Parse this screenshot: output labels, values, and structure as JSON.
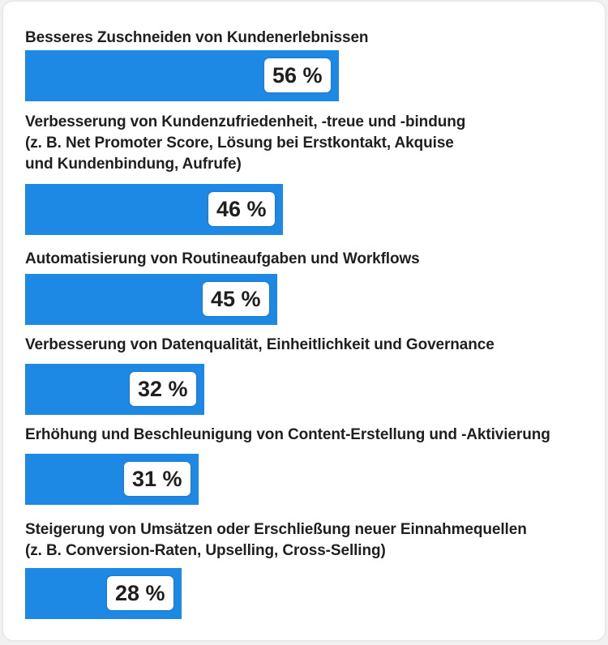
{
  "chart_data": {
    "type": "bar",
    "orientation": "horizontal",
    "unit": "%",
    "bar_color": "#1e88e5",
    "categories": [
      "Besseres Zuschneiden von Kundenerlebnissen",
      "Verbesserung von Kundenzufriedenheit, -treue und -bindung\n(z. B. Net Promoter Score, Lösung bei Erstkontakt, Akquise\nund Kundenbindung, Aufrufe)",
      "Automatisierung von Routineaufgaben und Workflows",
      "Verbesserung von Datenqualität, Einheitlichkeit und Governance",
      "Erhöhung und Beschleunigung von Content-Erstellung und -Aktivierung",
      "Steigerung von Umsätzen oder Erschließung neuer Einnahmequellen\n(z. B. Conversion-Raten, Upselling, Cross-Selling)"
    ],
    "values": [
      56,
      46,
      45,
      32,
      31,
      28
    ],
    "value_labels": [
      "56 %",
      "46 %",
      "45 %",
      "32 %",
      "31 %",
      "28 %"
    ],
    "xlim": [
      0,
      100
    ],
    "grid": false
  }
}
